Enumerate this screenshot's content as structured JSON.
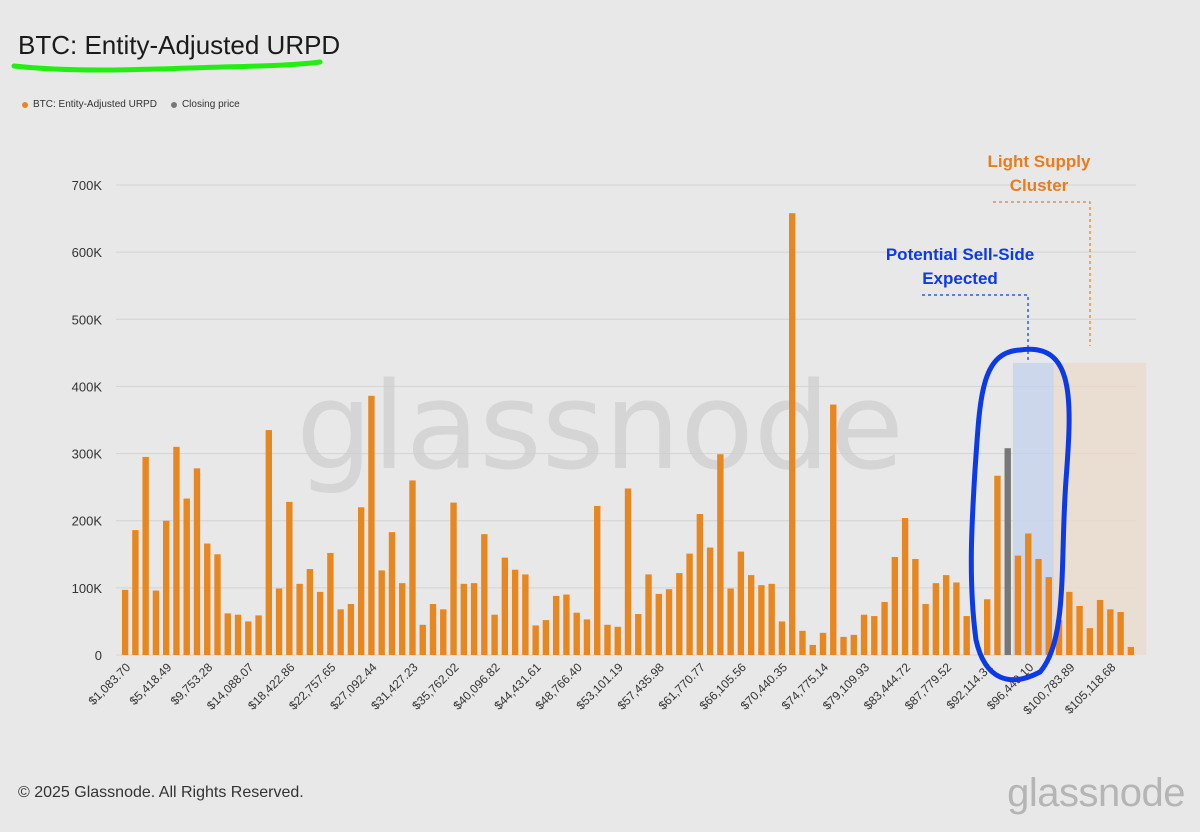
{
  "header": {
    "title": "BTC: Entity-Adjusted URPD"
  },
  "legend": [
    {
      "label": "BTC: Entity-Adjusted URPD",
      "color": "#e8861f"
    },
    {
      "label": "Closing price",
      "color": "#777777"
    }
  ],
  "annotations": {
    "light_supply": [
      "Light Supply",
      "Cluster"
    ],
    "sell_side": [
      "Potential Sell-Side",
      "Expected"
    ]
  },
  "colors": {
    "bar": "#e8861f",
    "closing": "#777777",
    "highlight_green": "#22ee11",
    "sell_side_blue": "#0b3ae6",
    "light_supply_orange": "#e87d20"
  },
  "watermark": "glassnode",
  "footer": {
    "copyright": "© 2025 Glassnode. All Rights Reserved.",
    "brand": "glassnode"
  },
  "chart_data": {
    "type": "bar",
    "title": "BTC: Entity-Adjusted URPD",
    "ylim": [
      0,
      700000
    ],
    "yticks": [
      0,
      100000,
      200000,
      300000,
      400000,
      500000,
      600000,
      700000
    ],
    "ytick_labels": [
      "0",
      "100K",
      "200K",
      "300K",
      "400K",
      "500K",
      "600K",
      "700K"
    ],
    "grid": true,
    "legend_position": "top-left",
    "x_tick_labels": [
      "$1,083.70",
      "$5,418.49",
      "$9,753.28",
      "$14,088.07",
      "$18,422.86",
      "$22,757.65",
      "$27,092.44",
      "$31,427.23",
      "$35,762.02",
      "$40,096.82",
      "$44,431.61",
      "$48,766.40",
      "$53,101.19",
      "$57,435.98",
      "$61,770.77",
      "$66,105.56",
      "$70,440.35",
      "$74,775.14",
      "$79,109.93",
      "$83,444.72",
      "$87,779.52",
      "$92,114.31",
      "$96,449.10",
      "$100,783.89",
      "$105,118.68"
    ],
    "values": [
      97000,
      186000,
      295000,
      96000,
      200000,
      310000,
      233000,
      278000,
      166000,
      150000,
      62000,
      60000,
      50000,
      59000,
      335000,
      99000,
      228000,
      106000,
      128000,
      94000,
      152000,
      68000,
      76000,
      220000,
      386000,
      126000,
      183000,
      107000,
      260000,
      45000,
      76000,
      68000,
      227000,
      106000,
      107000,
      180000,
      60000,
      145000,
      127000,
      120000,
      44000,
      52000,
      88000,
      90000,
      63000,
      53000,
      222000,
      45000,
      42000,
      248000,
      61000,
      120000,
      91000,
      98000,
      122000,
      151000,
      210000,
      160000,
      299000,
      99000,
      154000,
      119000,
      104000,
      106000,
      50000,
      658000,
      36000,
      15000,
      33000,
      373000,
      27000,
      30000,
      60000,
      58000,
      79000,
      146000,
      204000,
      143000,
      76000,
      107000,
      119000,
      108000,
      58000,
      0,
      83000,
      267000,
      308000,
      148000,
      181000,
      143000,
      116000,
      52000,
      94000,
      73000,
      40000,
      82000,
      68000,
      64000,
      12000
    ],
    "closing_price_index": 86,
    "highlight_regions": [
      {
        "name": "Potential Sell-Side Expected",
        "from": 87,
        "to": 90,
        "top": 435000
      },
      {
        "name": "Light Supply Cluster",
        "from": 91,
        "to": 99,
        "top": 435000
      }
    ]
  }
}
